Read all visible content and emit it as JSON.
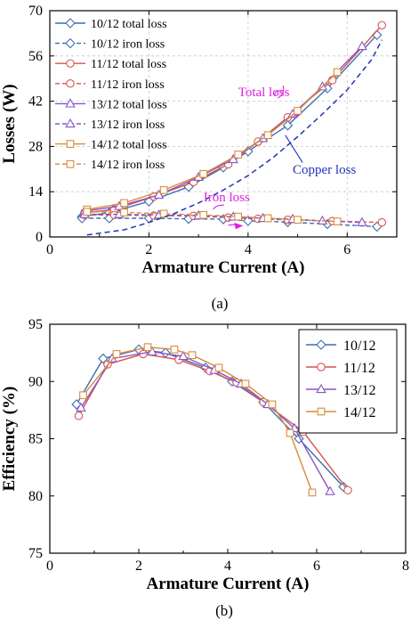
{
  "colors": {
    "s1012": "#3c6fb0",
    "s1112": "#d9534f",
    "s1312": "#8a55c4",
    "s1412": "#d98b3a",
    "copper": "#2233bb",
    "annot": "#e020e0",
    "frame": "#000000"
  },
  "chart_data": [
    {
      "type": "line",
      "panel_label": "(a)",
      "xlabel": "Armature Current (A)",
      "ylabel": "Losses (W)",
      "xlim": [
        0,
        7
      ],
      "ylim": [
        0,
        70
      ],
      "xticks": [
        0,
        2,
        4,
        6
      ],
      "yticks": [
        0,
        14,
        28,
        42,
        56,
        70
      ],
      "grid": true,
      "legend_position": "top-left",
      "series": [
        {
          "name": "10/12 total loss",
          "color_key": "s1012",
          "dash": false,
          "marker": "diamond",
          "points": [
            [
              0.65,
              6.3
            ],
            [
              1.2,
              7.5
            ],
            [
              2.0,
              11.0
            ],
            [
              2.8,
              15.5
            ],
            [
              3.5,
              21.5
            ],
            [
              4.0,
              26.5
            ],
            [
              4.8,
              34.5
            ],
            [
              5.6,
              46.0
            ],
            [
              6.6,
              62.5
            ]
          ]
        },
        {
          "name": "10/12 iron loss",
          "color_key": "s1012",
          "dash": true,
          "marker": "diamond",
          "points": [
            [
              0.65,
              5.8
            ],
            [
              1.2,
              5.8
            ],
            [
              2.0,
              5.8
            ],
            [
              2.8,
              5.6
            ],
            [
              3.5,
              5.5
            ],
            [
              4.0,
              5.0
            ],
            [
              4.8,
              4.6
            ],
            [
              5.6,
              4.0
            ],
            [
              6.6,
              3.2
            ]
          ]
        },
        {
          "name": "11/12 total loss",
          "color_key": "s1112",
          "dash": false,
          "marker": "circle",
          "points": [
            [
              0.7,
              7.5
            ],
            [
              1.3,
              8.5
            ],
            [
              2.1,
              12.5
            ],
            [
              2.9,
              17.0
            ],
            [
              3.6,
              22.5
            ],
            [
              4.2,
              29.5
            ],
            [
              4.8,
              37.0
            ],
            [
              5.7,
              48.5
            ],
            [
              6.7,
              65.5
            ]
          ]
        },
        {
          "name": "11/12 iron loss",
          "color_key": "s1112",
          "dash": true,
          "marker": "circle",
          "points": [
            [
              0.7,
              6.8
            ],
            [
              1.3,
              6.8
            ],
            [
              2.1,
              6.6
            ],
            [
              2.9,
              6.5
            ],
            [
              3.6,
              6.0
            ],
            [
              4.2,
              5.6
            ],
            [
              4.8,
              5.3
            ],
            [
              5.7,
              4.9
            ],
            [
              6.7,
              4.5
            ]
          ]
        },
        {
          "name": "13/12 total loss",
          "color_key": "s1312",
          "dash": false,
          "marker": "triangle",
          "points": [
            [
              0.7,
              8.0
            ],
            [
              1.4,
              9.5
            ],
            [
              2.2,
              13.0
            ],
            [
              3.0,
              18.5
            ],
            [
              3.7,
              24.0
            ],
            [
              4.3,
              30.5
            ],
            [
              4.9,
              38.0
            ],
            [
              5.5,
              46.5
            ],
            [
              6.3,
              59.0
            ]
          ]
        },
        {
          "name": "13/12 iron loss",
          "color_key": "s1312",
          "dash": true,
          "marker": "triangle",
          "points": [
            [
              0.7,
              7.0
            ],
            [
              1.4,
              7.0
            ],
            [
              2.2,
              6.8
            ],
            [
              3.0,
              6.6
            ],
            [
              3.7,
              6.2
            ],
            [
              4.3,
              5.8
            ],
            [
              4.9,
              5.5
            ],
            [
              5.5,
              5.0
            ],
            [
              6.3,
              4.5
            ]
          ]
        },
        {
          "name": "14/12 total loss",
          "color_key": "s1412",
          "dash": false,
          "marker": "square",
          "points": [
            [
              0.75,
              8.5
            ],
            [
              1.5,
              10.5
            ],
            [
              2.3,
              14.5
            ],
            [
              3.1,
              19.5
            ],
            [
              3.8,
              25.5
            ],
            [
              4.4,
              31.5
            ],
            [
              5.0,
              39.0
            ],
            [
              5.8,
              51.0
            ]
          ]
        },
        {
          "name": "14/12 iron loss",
          "color_key": "s1412",
          "dash": true,
          "marker": "square",
          "points": [
            [
              0.75,
              7.8
            ],
            [
              1.5,
              7.6
            ],
            [
              2.3,
              7.2
            ],
            [
              3.1,
              6.8
            ],
            [
              3.8,
              6.3
            ],
            [
              4.4,
              5.8
            ],
            [
              5.0,
              5.3
            ],
            [
              5.8,
              4.8
            ]
          ]
        },
        {
          "name": "Copper loss",
          "color_key": "copper",
          "dash": true,
          "marker": "none",
          "in_legend": false,
          "points": [
            [
              0.75,
              0.6
            ],
            [
              1.5,
              2.2
            ],
            [
              2.0,
              4.5
            ],
            [
              2.5,
              7.2
            ],
            [
              3.0,
              10.5
            ],
            [
              3.5,
              14.5
            ],
            [
              4.0,
              19.0
            ],
            [
              4.5,
              24.5
            ],
            [
              5.0,
              31.0
            ],
            [
              5.5,
              38.0
            ],
            [
              6.0,
              45.5
            ],
            [
              6.5,
              55.0
            ],
            [
              6.7,
              61.0
            ]
          ]
        }
      ],
      "annotations": [
        {
          "text": "Total loss",
          "color_key": "annot",
          "x": 3.8,
          "y": 43.5
        },
        {
          "text": "Copper loss",
          "color_key": "copper",
          "x": 4.9,
          "y": 19.5
        },
        {
          "text": "Iron loss",
          "color_key": "annot",
          "x": 3.1,
          "y": 11.0
        }
      ]
    },
    {
      "type": "line",
      "panel_label": "(b)",
      "xlabel": "Armature Current (A)",
      "ylabel": "Efficiency (%)",
      "xlim": [
        0,
        8
      ],
      "ylim": [
        75,
        95
      ],
      "xticks": [
        0,
        2,
        4,
        6,
        8
      ],
      "yticks": [
        75,
        80,
        85,
        90,
        95
      ],
      "grid": false,
      "legend_position": "top-right",
      "series": [
        {
          "name": "10/12",
          "color_key": "s1012",
          "marker": "diamond",
          "points": [
            [
              0.6,
              88.0
            ],
            [
              1.2,
              92.0
            ],
            [
              2.0,
              92.8
            ],
            [
              2.6,
              92.5
            ],
            [
              3.5,
              91.2
            ],
            [
              4.1,
              90.0
            ],
            [
              4.8,
              88.2
            ],
            [
              5.6,
              85.0
            ],
            [
              6.6,
              80.8
            ]
          ]
        },
        {
          "name": "11/12",
          "color_key": "s1112",
          "marker": "circle",
          "points": [
            [
              0.65,
              87.0
            ],
            [
              1.3,
              91.5
            ],
            [
              2.1,
              92.4
            ],
            [
              2.9,
              91.9
            ],
            [
              3.6,
              90.9
            ],
            [
              4.2,
              89.9
            ],
            [
              4.8,
              88.2
            ],
            [
              5.7,
              85.6
            ],
            [
              6.7,
              80.5
            ]
          ]
        },
        {
          "name": "13/12",
          "color_key": "s1312",
          "marker": "triangle",
          "points": [
            [
              0.7,
              87.7
            ],
            [
              1.4,
              92.0
            ],
            [
              2.3,
              92.6
            ],
            [
              3.0,
              92.2
            ],
            [
              3.7,
              91.0
            ],
            [
              4.3,
              89.8
            ],
            [
              4.9,
              88.0
            ],
            [
              5.5,
              85.9
            ],
            [
              6.3,
              80.4
            ]
          ]
        },
        {
          "name": "14/12",
          "color_key": "s1412",
          "marker": "square",
          "points": [
            [
              0.75,
              88.8
            ],
            [
              1.5,
              92.4
            ],
            [
              2.2,
              93.0
            ],
            [
              2.8,
              92.8
            ],
            [
              3.2,
              92.3
            ],
            [
              3.8,
              91.2
            ],
            [
              4.4,
              89.8
            ],
            [
              5.0,
              88.0
            ],
            [
              5.4,
              85.5
            ],
            [
              5.9,
              80.3
            ]
          ]
        }
      ]
    }
  ]
}
